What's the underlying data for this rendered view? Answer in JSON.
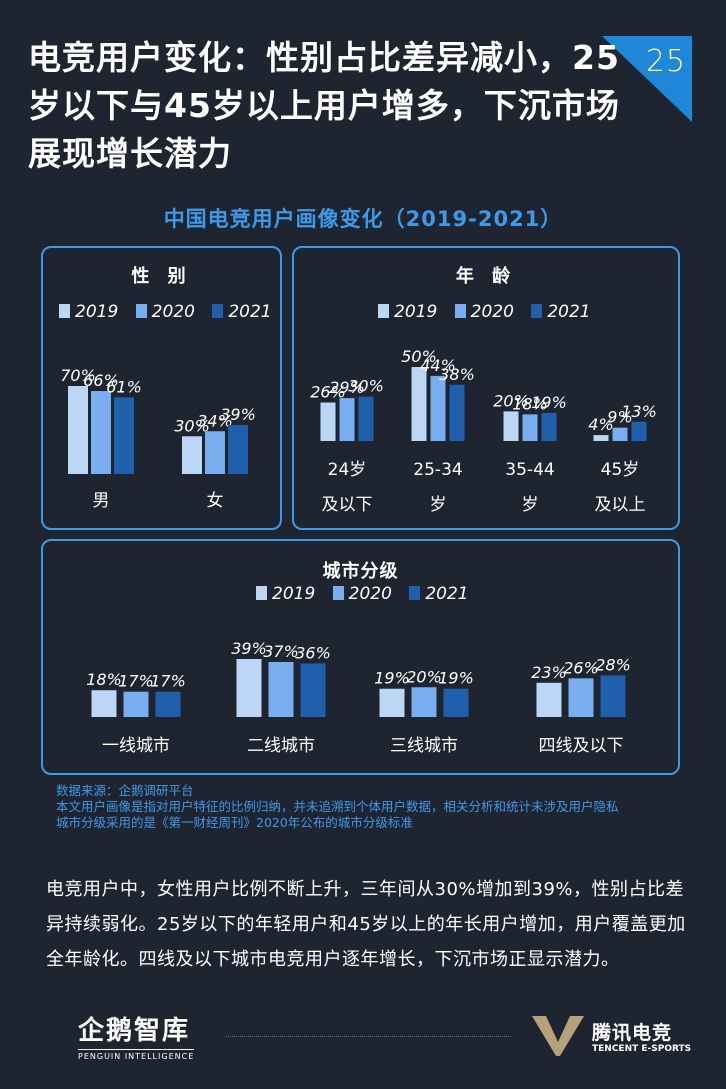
{
  "page": {
    "number": "25",
    "title": "电竞用户变化：性别占比差异减小，25岁以下与45岁以上用户增多，下沉市场展现增长潜力",
    "subtitle": "中国电竞用户画像变化（2019-2021）"
  },
  "colors": {
    "background": "#1f2530",
    "accent": "#3b9bea",
    "bar_2019": "#bcd6f5",
    "bar_2020": "#79aef0",
    "bar_2021": "#1f5fac"
  },
  "legend": [
    "2019",
    "2020",
    "2021"
  ],
  "chart_data": [
    {
      "type": "bar",
      "title": "性 别",
      "categories": [
        "男",
        "女"
      ],
      "series": [
        {
          "name": "2019",
          "values": [
            70,
            30
          ],
          "labels": [
            "70%",
            "30%"
          ]
        },
        {
          "name": "2020",
          "values": [
            66,
            34
          ],
          "labels": [
            "66%",
            "34%"
          ]
        },
        {
          "name": "2021",
          "values": [
            61,
            39
          ],
          "labels": [
            "61%",
            "39%"
          ]
        }
      ],
      "ylim": [
        0,
        70
      ]
    },
    {
      "type": "bar",
      "title": "年 龄",
      "categories": [
        "24岁\n及以下",
        "25-34\n岁",
        "35-44\n岁",
        "45岁\n及以上"
      ],
      "series": [
        {
          "name": "2019",
          "values": [
            26,
            50,
            20,
            4
          ],
          "labels": [
            "26%",
            "50%",
            "20%",
            "4%"
          ]
        },
        {
          "name": "2020",
          "values": [
            29,
            44,
            18,
            9
          ],
          "labels": [
            "29%",
            "44%",
            "18%",
            "9%"
          ]
        },
        {
          "name": "2021",
          "values": [
            30,
            38,
            19,
            13
          ],
          "labels": [
            "30%",
            "38%",
            "19%",
            "13%"
          ]
        }
      ],
      "ylim": [
        0,
        50
      ]
    },
    {
      "type": "bar",
      "title": "城市分级",
      "categories": [
        "一线城市",
        "二线城市",
        "三线城市",
        "四线及以下"
      ],
      "series": [
        {
          "name": "2019",
          "values": [
            18,
            39,
            19,
            23
          ],
          "labels": [
            "18%",
            "39%",
            "19%",
            "23%"
          ]
        },
        {
          "name": "2020",
          "values": [
            17,
            37,
            20,
            26
          ],
          "labels": [
            "17%",
            "37%",
            "20%",
            "26%"
          ]
        },
        {
          "name": "2021",
          "values": [
            17,
            36,
            19,
            28
          ],
          "labels": [
            "17%",
            "36%",
            "19%",
            "28%"
          ]
        }
      ],
      "ylim": [
        0,
        39
      ]
    }
  ],
  "notes": {
    "line1": "数据来源：企鹅调研平台",
    "line2": "本文用户画像是指对用户特征的比例归纳，并未追溯到个体用户数据，相关分析和统计未涉及用户隐私",
    "line3": "城市分级采用的是《第一财经周刊》2020年公布的城市分级标准"
  },
  "body_text": "电竞用户中，女性用户比例不断上升，三年间从30%增加到39%，性别占比差异持续弱化。25岁以下的年轻用户和45岁以上的年长用户增加，用户覆盖更加全年龄化。四线及以下城市电竞用户逐年增长，下沉市场正显示潜力。",
  "footer": {
    "left_logo": "企鹅智库",
    "left_logo_sub": "PENGUIN INTELLIGENCE",
    "right_logo": "腾讯电竞",
    "right_logo_sub": "TENCENT E-SPORTS"
  }
}
